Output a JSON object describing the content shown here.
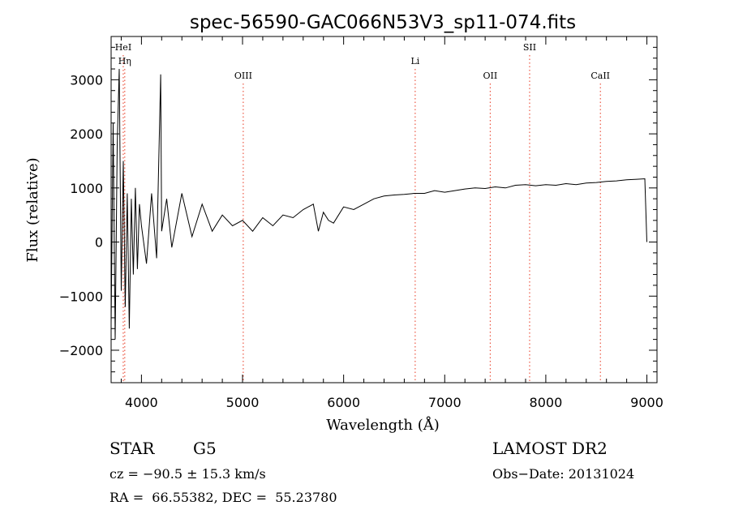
{
  "chart_data": {
    "type": "line",
    "title": "spec-56590-GAC066N53V3_sp11-074.fits",
    "xlabel": "Wavelength (Å)",
    "ylabel": "Flux (relative)",
    "xlim": [
      3700,
      9100
    ],
    "ylim": [
      -2600,
      3800
    ],
    "xticks": [
      4000,
      5000,
      6000,
      7000,
      8000,
      9000
    ],
    "xtick_labels": [
      "4000",
      "5000",
      "6000",
      "7000",
      "8000",
      "9000"
    ],
    "yticks": [
      -2000,
      -1000,
      0,
      1000,
      2000,
      3000
    ],
    "ytick_labels": [
      "−2000",
      "−1000",
      "0",
      "1000",
      "2000",
      "3000"
    ],
    "grid": false,
    "series": [
      {
        "x": [
          3700,
          3720,
          3740,
          3760,
          3780,
          3800,
          3820,
          3840,
          3860,
          3880,
          3900,
          3920,
          3940,
          3960,
          3980,
          4000,
          4050,
          4100,
          4150,
          4190,
          4200,
          4250,
          4300,
          4400,
          4500,
          4600,
          4700,
          4800,
          4900,
          5000,
          5100,
          5200,
          5300,
          5400,
          5500,
          5600,
          5700,
          5750,
          5800,
          5850,
          5900,
          6000,
          6100,
          6200,
          6300,
          6400,
          6500,
          6600,
          6700,
          6800,
          6900,
          7000,
          7100,
          7200,
          7300,
          7400,
          7500,
          7600,
          7700,
          7800,
          7900,
          8000,
          8100,
          8200,
          8300,
          8400,
          8500,
          8600,
          8700,
          8800,
          8900,
          8980,
          9000
        ],
        "y": [
          -1500,
          2200,
          -1800,
          1800,
          3200,
          -900,
          1500,
          -1200,
          900,
          -1600,
          800,
          -600,
          1000,
          -500,
          700,
          300,
          -400,
          900,
          -300,
          3100,
          200,
          800,
          -100,
          900,
          100,
          700,
          200,
          500,
          300,
          400,
          200,
          450,
          300,
          500,
          450,
          600,
          700,
          200,
          550,
          400,
          350,
          650,
          600,
          700,
          800,
          850,
          870,
          880,
          900,
          900,
          950,
          920,
          950,
          980,
          1000,
          990,
          1020,
          1000,
          1050,
          1060,
          1040,
          1060,
          1050,
          1080,
          1060,
          1090,
          1100,
          1120,
          1130,
          1150,
          1160,
          1170,
          0
        ]
      }
    ],
    "line_markers": [
      {
        "label": "HeI",
        "x": 3820,
        "level": 0
      },
      {
        "label": "Hη",
        "x": 3835,
        "level": 1
      },
      {
        "label": "OIII",
        "x": 5007,
        "level": 2
      },
      {
        "label": "Li",
        "x": 6708,
        "level": 1
      },
      {
        "label": "OII",
        "x": 7450,
        "level": 2
      },
      {
        "label": "SII",
        "x": 7840,
        "level": 0
      },
      {
        "label": "CaII",
        "x": 8540,
        "level": 2
      }
    ]
  },
  "info": {
    "class_label": "STAR",
    "subclass_label": "G5",
    "survey": "LAMOST DR2",
    "cz": "cz = −90.5 ± 15.3 km/s",
    "obs_date": "Obs−Date: 20131024",
    "coords": "RA =  66.55382, DEC =  55.23780"
  },
  "colors": {
    "line": "#000000",
    "marker": "#e8341c"
  }
}
